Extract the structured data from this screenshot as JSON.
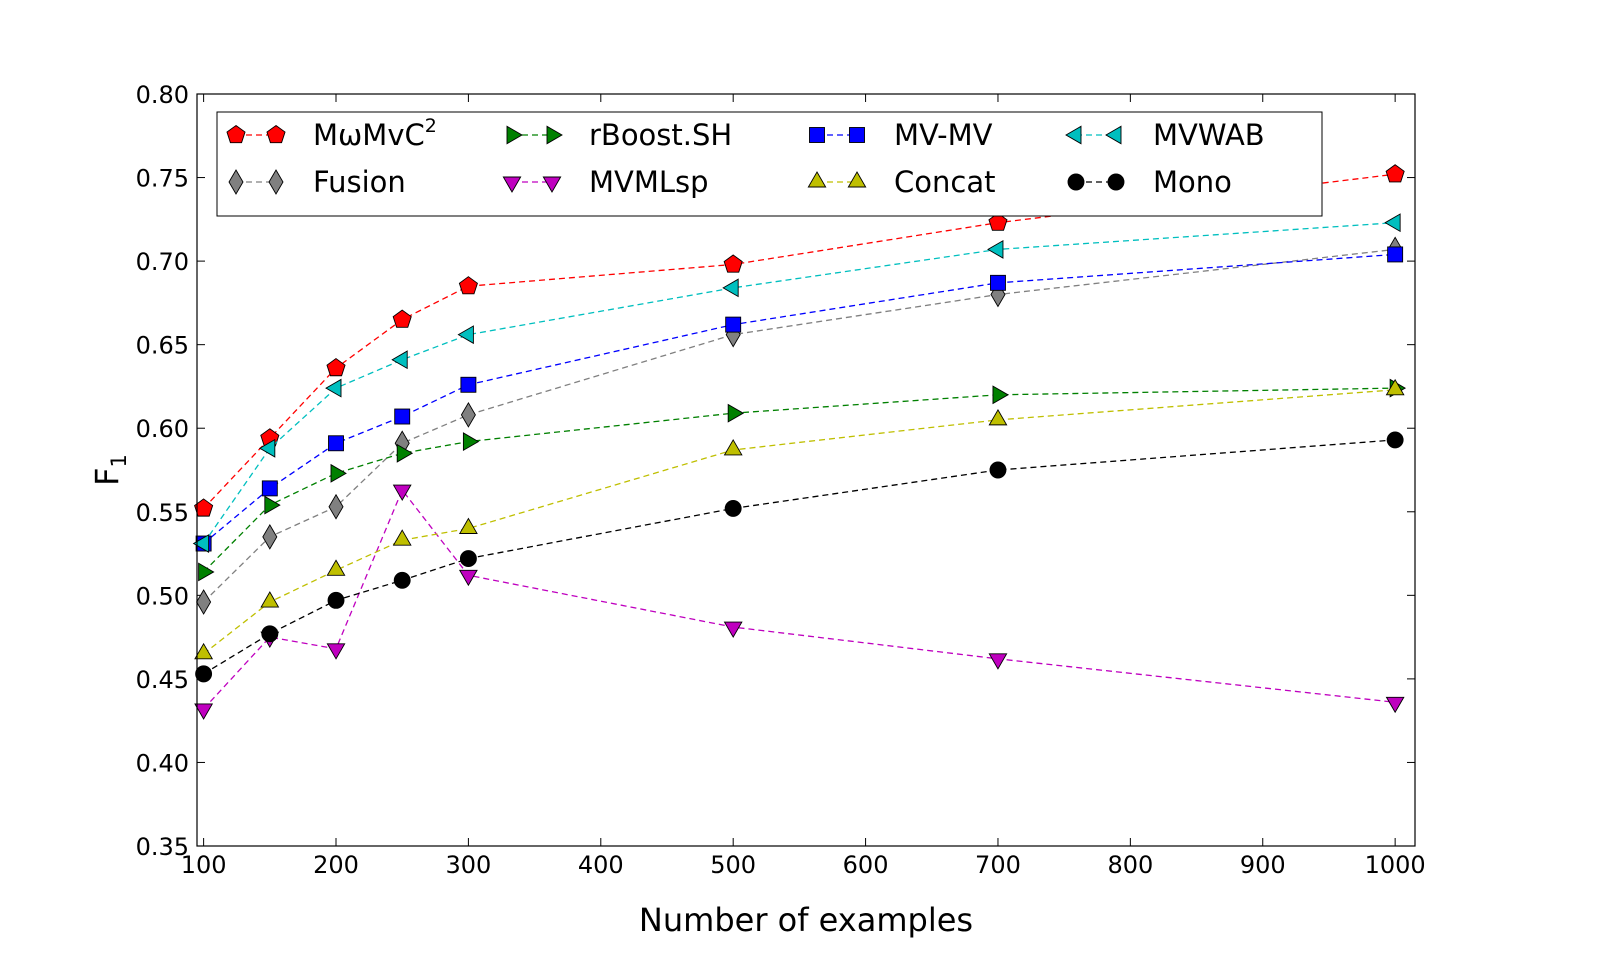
{
  "chart_data": {
    "type": "line",
    "title": "",
    "xlabel": "Number of examples",
    "ylabel": "F",
    "ylabel_subscript": "1",
    "xlim": [
      95,
      1015
    ],
    "ylim": [
      0.35,
      0.8
    ],
    "xticks": [
      100,
      200,
      300,
      400,
      500,
      600,
      700,
      800,
      900,
      1000
    ],
    "yticks": [
      0.35,
      0.4,
      0.45,
      0.5,
      0.55,
      0.6,
      0.65,
      0.7,
      0.75,
      0.8
    ],
    "grid": false,
    "legend_position": "top",
    "x": [
      100,
      150,
      200,
      250,
      300,
      500,
      700,
      1000
    ],
    "series": [
      {
        "name": "MωMvC",
        "name_sup": "2",
        "marker": "pentagon",
        "color": "#ff0000",
        "values": [
          0.552,
          0.594,
          0.636,
          0.665,
          0.685,
          0.698,
          0.723,
          0.752
        ]
      },
      {
        "name": "Fusion",
        "marker": "diamond",
        "color": "#808080",
        "values": [
          0.496,
          0.535,
          0.553,
          0.591,
          0.608,
          0.656,
          0.68,
          0.707
        ]
      },
      {
        "name": "rBoost.SH",
        "marker": "triangle-right",
        "color": "#008000",
        "values": [
          0.514,
          0.554,
          0.573,
          0.585,
          0.592,
          0.609,
          0.62,
          0.624
        ]
      },
      {
        "name": "MVMLsp",
        "marker": "triangle-down",
        "color": "#bf00bf",
        "values": [
          0.432,
          0.475,
          0.468,
          0.563,
          0.512,
          0.481,
          0.462,
          0.436
        ]
      },
      {
        "name": "MV-MV",
        "marker": "square",
        "color": "#0000ff",
        "values": [
          0.531,
          0.564,
          0.591,
          0.607,
          0.626,
          0.662,
          0.687,
          0.704
        ]
      },
      {
        "name": "Concat",
        "marker": "triangle-up",
        "color": "#bfbf00",
        "values": [
          0.465,
          0.496,
          0.515,
          0.533,
          0.54,
          0.587,
          0.605,
          0.623
        ]
      },
      {
        "name": "MVWAB",
        "marker": "triangle-left",
        "color": "#00bfbf",
        "values": [
          0.531,
          0.588,
          0.624,
          0.641,
          0.656,
          0.684,
          0.707,
          0.723
        ]
      },
      {
        "name": "Mono",
        "marker": "circle",
        "color": "#000000",
        "values": [
          0.453,
          0.477,
          0.497,
          0.509,
          0.522,
          0.552,
          0.575,
          0.593
        ]
      }
    ]
  }
}
